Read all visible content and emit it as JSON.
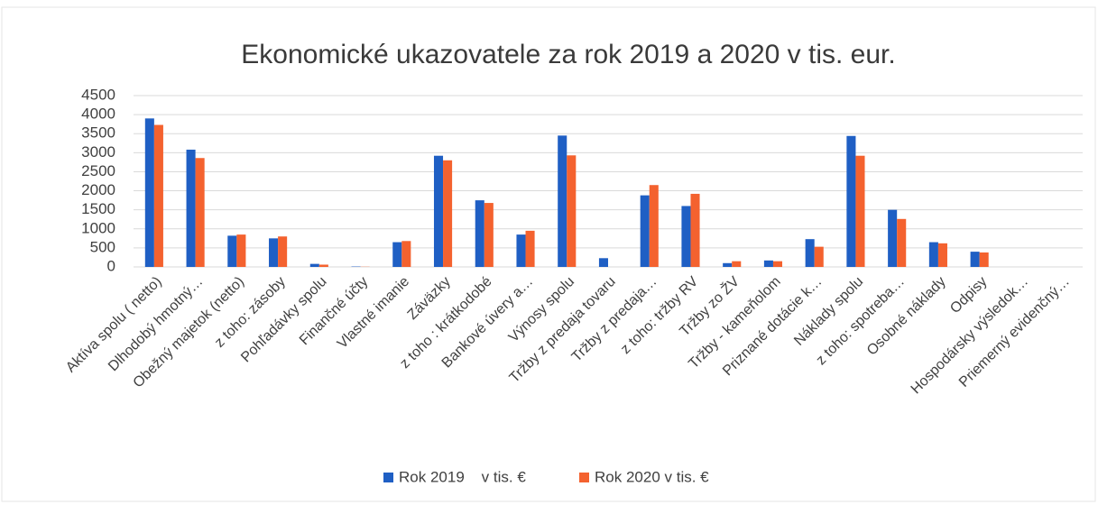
{
  "chart_data": {
    "type": "bar",
    "title": "Ekonomické ukazovatele za rok 2019 a 2020 v tis. eur.",
    "categories": [
      "Aktíva spolu ( netto)",
      "Dlhodobý hmotný…",
      "Obežný majetok (netto)",
      "z toho: zásoby",
      "Pohľadávky spolu",
      "Finančné účty",
      "Vlastné imanie",
      "Záväzky",
      "z toho : krátkodobé",
      "Bankové úvery a…",
      "Výnosy spolu",
      "Tržby z predaja tovaru",
      "Tržby z predaja…",
      "z toho: tržby RV",
      "Tržby zo ŽV",
      "Tržby - kameňolom",
      "Priznané dotácie k…",
      "Náklady spolu",
      "z toho: spotreba…",
      "Osobné náklady",
      "Odpisy",
      "Hospodársky výsledok…",
      "Priemerný evidenčný…"
    ],
    "series": [
      {
        "name": "Rok 2019    v tis. €",
        "color": "#1f5fc4",
        "values": [
          3900,
          3080,
          820,
          750,
          80,
          10,
          650,
          2920,
          1750,
          850,
          3450,
          230,
          1880,
          1600,
          100,
          170,
          730,
          3440,
          1500,
          650,
          400,
          0,
          0
        ]
      },
      {
        "name": "Rok 2020 v tis. €",
        "color": "#f4622f",
        "values": [
          3730,
          2860,
          850,
          800,
          60,
          5,
          680,
          2800,
          1680,
          950,
          2930,
          0,
          2150,
          1920,
          150,
          150,
          530,
          2920,
          1260,
          620,
          380,
          0,
          0
        ]
      }
    ],
    "ylim": [
      0,
      4500
    ],
    "yticks": [
      0,
      500,
      1000,
      1500,
      2000,
      2500,
      3000,
      3500,
      4000,
      4500
    ],
    "grid": true,
    "legend": "bottom"
  }
}
